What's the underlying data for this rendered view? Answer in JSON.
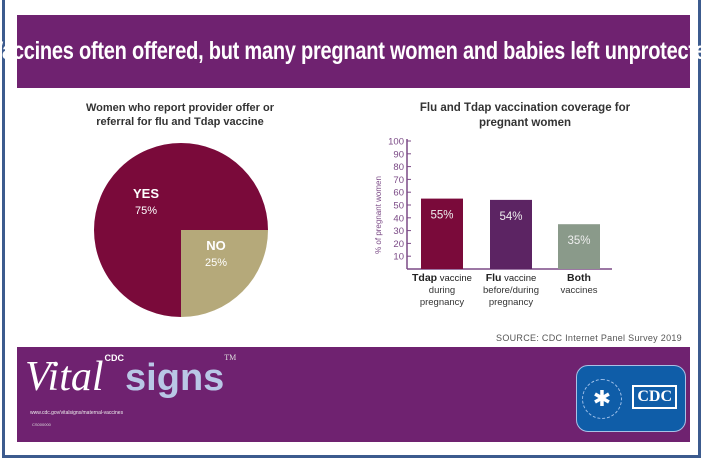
{
  "header": {
    "title": "Vaccines often offered, but many pregnant women and babies left unprotected"
  },
  "chart_data": [
    {
      "type": "pie",
      "title": "Women who report provider offer or referral for flu and Tdap vaccine",
      "categories": [
        "YES",
        "NO"
      ],
      "values": [
        75,
        25
      ],
      "labels": [
        "75%",
        "25%"
      ],
      "colors": [
        "#7a0a3a",
        "#b5a97a"
      ]
    },
    {
      "type": "bar",
      "title": "Flu and Tdap vaccination coverage for pregnant women",
      "ylabel": "% of pregnant women",
      "ylim": [
        0,
        100
      ],
      "yticks": [
        10,
        20,
        30,
        40,
        50,
        60,
        70,
        80,
        90,
        100
      ],
      "categories": [
        {
          "bold": "Tdap",
          "rest": " vaccine",
          "line2": "during",
          "line3": "pregnancy"
        },
        {
          "bold": "Flu",
          "rest": " vaccine",
          "line2": "before/during",
          "line3": "pregnancy"
        },
        {
          "bold": "Both",
          "rest": "",
          "line2": "vaccines",
          "line3": ""
        }
      ],
      "values": [
        55,
        54,
        35
      ],
      "labels": [
        "55%",
        "54%",
        "35%"
      ],
      "colors": [
        "#7a0a3a",
        "#5c2463",
        "#8a9a8a"
      ]
    }
  ],
  "source": "SOURCE: CDC Internet Panel Survey 2019",
  "footer": {
    "cdc_sup": "CDC",
    "vital": "Vital",
    "signs": "signs",
    "tm": "TM",
    "url": "www.cdc.gov/vitalsigns/maternal-vaccines",
    "code": "CS000000",
    "logo": "CDC",
    "colors": {
      "banner": "#6f2270",
      "logo": "#0f5da8"
    }
  }
}
